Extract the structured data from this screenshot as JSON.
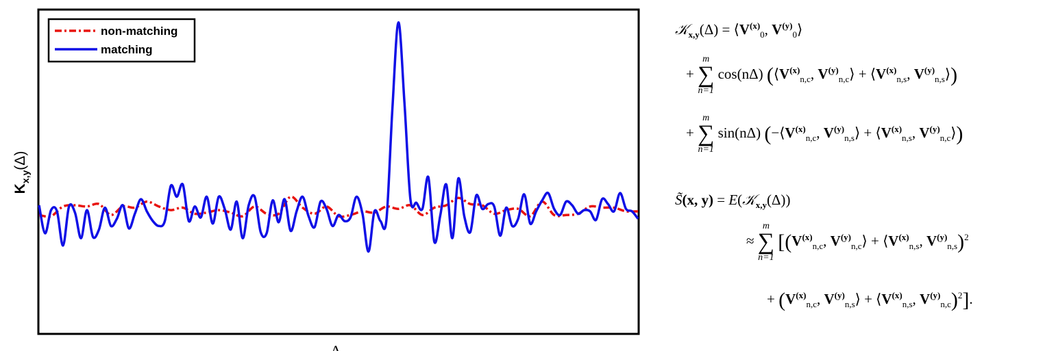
{
  "chart_data": {
    "type": "line",
    "xlabel": "Δ",
    "ylabel": "K",
    "ylabel_sub": "x,y",
    "ylabel_arg": "(Δ)",
    "xlim": [
      0,
      1
    ],
    "ylim": [
      -1.0,
      1.65
    ],
    "legend_position": "top-left",
    "grid": false,
    "series": [
      {
        "name": "non-matching",
        "color": "#e8140f",
        "style": "dash-dot",
        "x": [
          0.0,
          0.02,
          0.04,
          0.06,
          0.08,
          0.1,
          0.12,
          0.14,
          0.16,
          0.18,
          0.2,
          0.22,
          0.24,
          0.26,
          0.28,
          0.3,
          0.32,
          0.34,
          0.36,
          0.38,
          0.4,
          0.42,
          0.44,
          0.46,
          0.48,
          0.5,
          0.52,
          0.54,
          0.56,
          0.58,
          0.6,
          0.62,
          0.64,
          0.66,
          0.68,
          0.7,
          0.72,
          0.74,
          0.76,
          0.78,
          0.8,
          0.82,
          0.84,
          0.86,
          0.88,
          0.9,
          0.92,
          0.94,
          0.96,
          0.98,
          1.0
        ],
        "values": [
          -0.03,
          -0.04,
          0.04,
          0.05,
          0.04,
          0.06,
          -0.03,
          0.04,
          0.03,
          0.08,
          0.04,
          0.01,
          0.03,
          -0.02,
          -0.01,
          0.01,
          -0.01,
          -0.04,
          0.04,
          -0.02,
          -0.02,
          0.12,
          0.03,
          -0.02,
          0.04,
          -0.04,
          -0.03,
          0.0,
          -0.01,
          0.04,
          0.02,
          0.05,
          -0.03,
          0.03,
          0.05,
          0.11,
          0.06,
          0.05,
          -0.02,
          0.01,
          0.02,
          -0.04,
          0.08,
          -0.03,
          -0.03,
          -0.02,
          0.04,
          0.03,
          0.03,
          0.0,
          0.0
        ]
      },
      {
        "name": "matching",
        "color": "#1010e6",
        "style": "solid",
        "x": [
          0.0,
          0.01,
          0.02,
          0.03,
          0.04,
          0.05,
          0.06,
          0.07,
          0.08,
          0.09,
          0.1,
          0.11,
          0.12,
          0.13,
          0.14,
          0.15,
          0.16,
          0.17,
          0.18,
          0.19,
          0.2,
          0.21,
          0.22,
          0.23,
          0.24,
          0.25,
          0.26,
          0.27,
          0.28,
          0.29,
          0.3,
          0.31,
          0.32,
          0.33,
          0.34,
          0.35,
          0.36,
          0.37,
          0.38,
          0.39,
          0.4,
          0.41,
          0.42,
          0.43,
          0.44,
          0.45,
          0.46,
          0.47,
          0.48,
          0.49,
          0.5,
          0.51,
          0.52,
          0.53,
          0.54,
          0.55,
          0.56,
          0.57,
          0.58,
          0.59,
          0.6,
          0.61,
          0.62,
          0.63,
          0.64,
          0.65,
          0.66,
          0.67,
          0.68,
          0.69,
          0.7,
          0.71,
          0.72,
          0.73,
          0.74,
          0.75,
          0.76,
          0.77,
          0.78,
          0.79,
          0.8,
          0.81,
          0.82,
          0.83,
          0.84,
          0.85,
          0.86,
          0.87,
          0.88,
          0.89,
          0.9,
          0.91,
          0.92,
          0.93,
          0.94,
          0.95,
          0.96,
          0.97,
          0.98,
          0.99,
          1.0
        ],
        "values": [
          0.05,
          -0.18,
          0.01,
          0.0,
          -0.28,
          0.04,
          -0.01,
          -0.22,
          0.01,
          -0.21,
          -0.15,
          0.03,
          -0.12,
          -0.06,
          0.05,
          -0.14,
          -0.02,
          0.1,
          0.0,
          -0.08,
          -0.12,
          -0.08,
          0.21,
          0.12,
          0.22,
          -0.08,
          0.04,
          -0.05,
          0.12,
          -0.1,
          0.12,
          0.02,
          -0.15,
          0.08,
          -0.22,
          0.05,
          0.12,
          -0.17,
          -0.18,
          0.09,
          -0.09,
          0.1,
          -0.16,
          0.0,
          0.12,
          -0.04,
          -0.13,
          0.08,
          0.02,
          -0.12,
          -0.03,
          -0.08,
          -0.05,
          0.12,
          -0.02,
          -0.33,
          0.0,
          -0.08,
          -0.07,
          0.85,
          1.55,
          0.9,
          0.1,
          0.07,
          0.02,
          0.28,
          -0.25,
          -0.03,
          0.22,
          -0.22,
          0.27,
          -0.04,
          -0.17,
          0.13,
          0.02,
          0.06,
          0.04,
          -0.2,
          0.03,
          -0.12,
          -0.06,
          0.14,
          -0.1,
          0.0,
          0.09,
          0.15,
          0.02,
          -0.03,
          0.08,
          0.05,
          -0.02,
          0.01,
          0.0,
          -0.07,
          0.1,
          0.06,
          0.0,
          0.15,
          0.02,
          0.0,
          -0.06
        ]
      }
    ]
  },
  "equations": {
    "K": "𝒦",
    "eq_symbol": "=",
    "approx_symbol": "≈",
    "plus": "+",
    "minus": "−",
    "sum_upper": "m",
    "sum_lower": "n=1",
    "sigma": "∑",
    "cos": "cos",
    "sin": "sin",
    "n_delta": "(nΔ)",
    "S_tilde": "S̃",
    "E": "E",
    "delta": "(Δ)",
    "sub_xy": "x,y",
    "xy_args": "(x, y)",
    "V": "V",
    "zero": "0",
    "sup_x": "(x)",
    "sup_y": "(y)",
    "sub_nc": "n,c",
    "sub_ns": "n,s",
    "square": "2",
    "period": "."
  }
}
